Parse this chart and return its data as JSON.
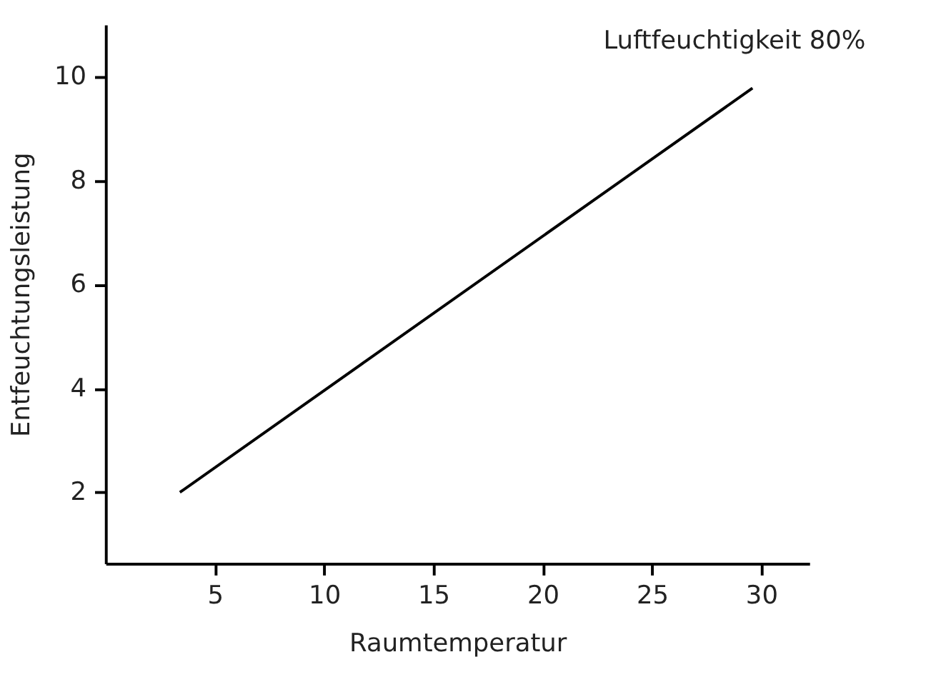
{
  "chart_data": {
    "type": "line",
    "xlabel": "Raumtemperatur",
    "ylabel": "Entfeuchtungsleistung",
    "annotations": [
      "Luftfeuchtigkeit 80%"
    ],
    "x": [
      3.4,
      29.6
    ],
    "series": [
      {
        "color": "#000000",
        "values": [
          2.0,
          9.78
        ]
      }
    ],
    "xlim": [
      0,
      32.2
    ],
    "xticks": [
      5,
      10,
      15,
      20,
      25,
      30
    ],
    "ylim": [
      0.63,
      11
    ],
    "yticks": [
      2,
      4,
      6,
      8,
      10
    ],
    "grid": false,
    "marker": "none",
    "line_style": "solid"
  }
}
